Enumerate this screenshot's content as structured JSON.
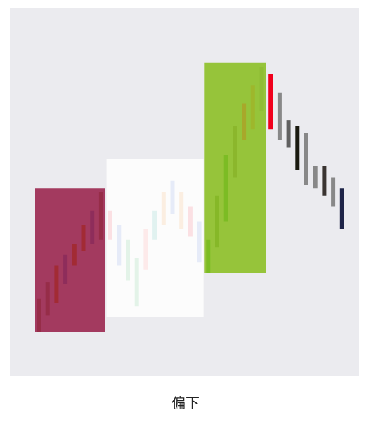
{
  "caption": "偏下",
  "chart_data": {
    "type": "bar",
    "grid": false,
    "legend": "none",
    "background": "#ebebef",
    "ylim": [
      0,
      100
    ],
    "bars": [
      {
        "lo": 12,
        "hi": 21,
        "color": "#962d48"
      },
      {
        "lo": 16.5,
        "hi": 25.5,
        "color": "#962d48"
      },
      {
        "lo": 20,
        "hi": 30,
        "color": "#a22b34"
      },
      {
        "lo": 25,
        "hi": 33,
        "color": "#8e2d5b"
      },
      {
        "lo": 30,
        "hi": 36,
        "color": "#a22b34"
      },
      {
        "lo": 34,
        "hi": 41,
        "color": "#a22b34"
      },
      {
        "lo": 36,
        "hi": 45,
        "color": "#8e2d5b"
      },
      {
        "lo": 37,
        "hi": 50,
        "color": "#962d48"
      },
      {
        "lo": 37,
        "hi": 45,
        "color": "#fbe0e3"
      },
      {
        "lo": 30,
        "hi": 41,
        "color": "#e6ebf8"
      },
      {
        "lo": 26,
        "hi": 37,
        "color": "#e3f3e8"
      },
      {
        "lo": 19,
        "hi": 32,
        "color": "#e3f3e8"
      },
      {
        "lo": 29,
        "hi": 40,
        "color": "#fdeaea"
      },
      {
        "lo": 37,
        "hi": 45,
        "color": "#e1f2f0"
      },
      {
        "lo": 41,
        "hi": 50,
        "color": "#fbeee1"
      },
      {
        "lo": 44,
        "hi": 53,
        "color": "#e6ebf8"
      },
      {
        "lo": 40,
        "hi": 50,
        "color": "#fbeee1"
      },
      {
        "lo": 38,
        "hi": 46,
        "color": "#fbe0e3"
      },
      {
        "lo": 31,
        "hi": 42,
        "color": "#e6ebf8"
      },
      {
        "lo": 28,
        "hi": 37,
        "color": "#7cbc24"
      },
      {
        "lo": 35,
        "hi": 49,
        "color": "#86b828"
      },
      {
        "lo": 42,
        "hi": 60,
        "color": "#7cbc24"
      },
      {
        "lo": 54,
        "hi": 68,
        "color": "#8bb72c"
      },
      {
        "lo": 64,
        "hi": 74,
        "color": "#a8a82a"
      },
      {
        "lo": 67,
        "hi": 79,
        "color": "#9eb72c"
      },
      {
        "lo": 72,
        "hi": 84,
        "color": "#8fbd34"
      },
      {
        "lo": 67,
        "hi": 82,
        "color": "#f0001c"
      },
      {
        "lo": 64,
        "hi": 77,
        "color": "#888888"
      },
      {
        "lo": 62,
        "hi": 69.5,
        "color": "#606060"
      },
      {
        "lo": 56,
        "hi": 68,
        "color": "#1a1a10"
      },
      {
        "lo": 52,
        "hi": 66,
        "color": "#888888"
      },
      {
        "lo": 51,
        "hi": 57,
        "color": "#888888"
      },
      {
        "lo": 49,
        "hi": 57,
        "color": "#3a3431"
      },
      {
        "lo": 46,
        "hi": 54,
        "color": "#888888"
      },
      {
        "lo": 40,
        "hi": 51,
        "color": "#1e2448"
      }
    ],
    "highlight_boxes": [
      {
        "first_bar": 0,
        "last_bar": 7,
        "lo": 12,
        "hi": 51,
        "color": "#a33a5f"
      },
      {
        "first_bar": 8,
        "last_bar": 18,
        "lo": 16,
        "hi": 59,
        "color": "#fcfcfc"
      },
      {
        "first_bar": 19,
        "last_bar": 25,
        "lo": 28,
        "hi": 85,
        "color": "#96c43a"
      }
    ]
  }
}
